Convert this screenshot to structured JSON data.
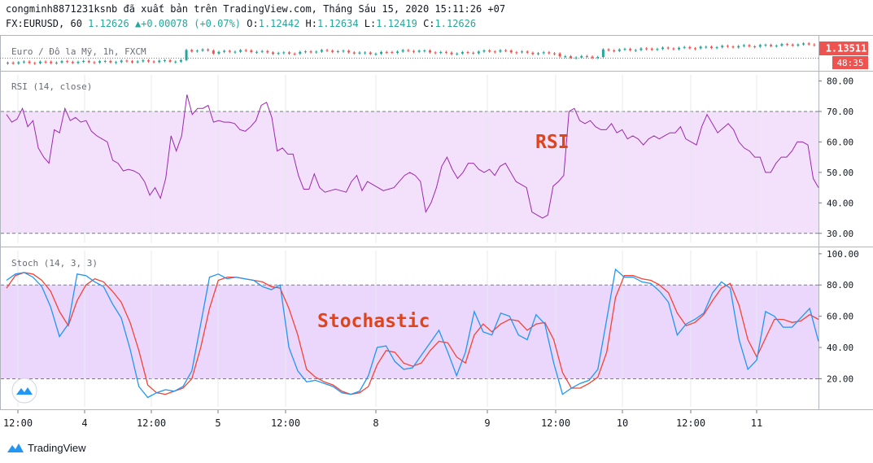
{
  "header": {
    "line1": "congminh8871231ksnb đã xuất bản trên TradingView.com, Tháng Sáu 15, 2020 15:11:26 +07",
    "symbol": "FX:EURUSD, 60",
    "last": "1.12626",
    "change": "+0.00078 (+0.07%)",
    "o_label": "O:",
    "o": "1.12442",
    "h_label": "H:",
    "h": "1.12634",
    "l_label": "L:",
    "l": "1.12419",
    "c_label": "C:",
    "c": "1.12626"
  },
  "price_pane": {
    "legend": "Euro / Đô la Mỹ, 1h, FXCM",
    "price_tag": "1.13511",
    "countdown": "48:35",
    "colors": {
      "up": "#26a69a",
      "down": "#ef5350",
      "tag": "#ef5350"
    }
  },
  "rsi_pane": {
    "legend": "RSI (14, close)",
    "overlay_text": "RSI",
    "overlay_color": "#e0441b"
  },
  "stoch_pane": {
    "legend": "Stoch (14, 3, 3)",
    "overlay_text": "Stochastic",
    "overlay_color": "#e0441b"
  },
  "time_axis": [
    "12:00",
    "4",
    "12:00",
    "5",
    "12:00",
    "8",
    "9",
    "12:00",
    "10",
    "12:00",
    "11"
  ],
  "brand": {
    "name": "TradingView"
  },
  "chart_data": [
    {
      "type": "line",
      "title": "RSI (14, close)",
      "ylim": [
        27,
        82
      ],
      "yticks": [
        "30.00",
        "40.00",
        "50.00",
        "60.00",
        "70.00",
        "80.00"
      ],
      "bands": {
        "upper": 70,
        "lower": 30,
        "fill": "#f3e1fb"
      },
      "series": [
        {
          "color": "#9c27b0",
          "values": [
            69,
            66.5,
            67.5,
            71,
            65,
            67,
            58,
            55,
            53,
            64,
            63,
            71,
            67,
            68,
            66.5,
            67,
            63.5,
            62,
            61,
            60,
            54,
            53,
            50.5,
            51,
            50.5,
            49.5,
            47,
            42.5,
            45,
            41.5,
            48,
            62,
            57,
            62,
            75.5,
            69,
            71,
            71,
            72,
            66.5,
            67,
            66.5,
            66.5,
            66,
            64,
            63.5,
            65,
            67,
            72,
            73,
            68,
            57,
            58,
            56,
            56,
            49,
            44.5,
            44.5,
            49.5,
            45,
            43.5,
            44,
            44.5,
            44,
            43.5,
            47,
            49,
            44,
            47,
            46,
            45,
            44,
            44.5,
            45,
            47,
            49,
            50,
            49,
            47,
            37,
            40,
            45,
            52,
            55,
            51,
            48,
            50,
            53,
            53,
            51,
            50,
            51,
            49,
            52,
            53,
            50,
            47,
            46,
            45,
            37,
            36,
            35,
            36,
            45.5,
            47,
            49,
            70,
            71,
            67,
            66,
            67,
            65,
            64,
            64,
            66,
            63,
            64,
            61,
            62,
            61,
            59,
            61,
            62,
            61,
            62,
            63,
            63,
            65,
            61,
            60,
            59,
            65,
            69,
            66,
            63,
            64.5,
            66,
            64,
            60,
            58,
            57,
            55,
            55,
            50,
            50,
            53,
            55,
            55,
            57,
            60,
            60,
            59,
            48,
            45
          ]
        }
      ],
      "xlabel": "",
      "ylabel": ""
    },
    {
      "type": "line",
      "title": "Stoch (14, 3, 3)",
      "ylim": [
        2,
        102
      ],
      "yticks": [
        "20.00",
        "40.00",
        "60.00",
        "80.00",
        "100.00"
      ],
      "bands": {
        "upper": 80,
        "lower": 20,
        "fill": "#ebd7fc"
      },
      "series": [
        {
          "color": "#2196f3",
          "values": [
            83,
            87,
            88,
            85,
            79,
            66,
            47,
            55,
            87,
            86,
            82,
            79,
            68,
            59,
            39,
            15,
            8,
            11,
            13,
            12,
            15,
            25,
            55,
            85,
            87,
            84,
            85,
            84,
            83,
            79,
            77,
            80,
            40,
            25,
            18,
            19,
            17,
            15,
            11,
            10,
            12,
            22,
            40,
            41,
            31,
            26,
            27,
            35,
            43,
            51,
            37,
            22,
            37,
            63,
            50,
            48,
            62,
            60,
            48,
            45,
            61,
            55,
            30,
            10,
            14,
            17,
            19,
            26,
            58,
            90,
            85,
            85,
            82,
            81,
            76,
            69,
            48,
            55,
            58,
            62,
            75,
            82,
            78,
            45,
            26,
            32,
            63,
            60,
            53,
            53,
            59,
            65,
            44
          ]
        },
        {
          "color": "#f44336",
          "values": [
            78,
            86,
            88,
            87,
            83,
            76,
            63,
            54,
            70,
            80,
            84,
            82,
            76,
            69,
            56,
            38,
            16,
            11,
            10,
            12,
            14,
            20,
            40,
            65,
            83,
            85,
            85,
            84,
            83,
            82,
            79,
            78,
            65,
            48,
            26,
            21,
            18,
            16,
            12,
            10,
            11,
            15,
            29,
            38,
            37,
            30,
            28,
            30,
            38,
            44,
            43,
            34,
            30,
            48,
            55,
            50,
            55,
            58,
            57,
            51,
            55,
            56,
            45,
            24,
            14,
            14,
            17,
            21,
            37,
            72,
            86,
            86,
            84,
            83,
            80,
            75,
            62,
            54,
            56,
            61,
            70,
            78,
            81,
            67,
            45,
            34,
            46,
            58,
            58,
            56,
            57,
            61,
            58
          ]
        }
      ],
      "xlabel": "",
      "ylabel": ""
    }
  ]
}
